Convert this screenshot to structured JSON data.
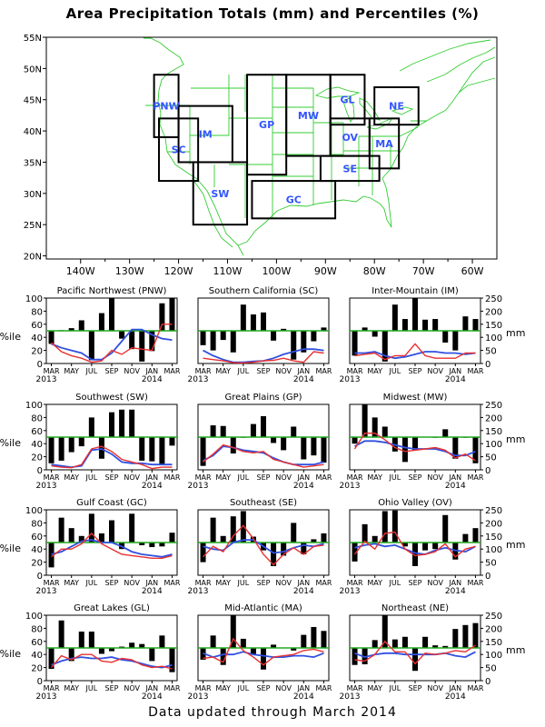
{
  "title": "Area Precipitation Totals (mm) and Percentiles (%)",
  "footer": "Data updated through March 2014",
  "colors": {
    "map_lines": "#33cc33",
    "region_box": "#000000",
    "region_label": "#3355ff",
    "bars": "#000000",
    "percentile_line": "#e83030",
    "normal_line": "#3050e0",
    "median_line": "#22aa22"
  },
  "map": {
    "lon_ticks": [
      "140W",
      "130W",
      "120W",
      "110W",
      "100W",
      "90W",
      "80W",
      "70W",
      "60W"
    ],
    "lat_ticks": [
      "55N",
      "50N",
      "45N",
      "40N",
      "35N",
      "30N",
      "25N",
      "20N"
    ],
    "lon_range": [
      -147,
      -55
    ],
    "lat_range": [
      19.5,
      55
    ],
    "regions": [
      {
        "label": "PNW",
        "lon": [
          -125,
          -120
        ],
        "lat": [
          39,
          49
        ]
      },
      {
        "label": "SC",
        "lon": [
          -124,
          -116
        ],
        "lat": [
          32,
          42
        ]
      },
      {
        "label": "IM",
        "lon": [
          -120,
          -109
        ],
        "lat": [
          35,
          44
        ]
      },
      {
        "label": "SW",
        "lon": [
          -117,
          -106
        ],
        "lat": [
          25,
          35
        ]
      },
      {
        "label": "GP",
        "lon": [
          -106,
          -98
        ],
        "lat": [
          33,
          49
        ]
      },
      {
        "label": "MW",
        "lon": [
          -98,
          -89
        ],
        "lat": [
          36,
          49
        ]
      },
      {
        "label": "GL",
        "lon": [
          -89,
          -82
        ],
        "lat": [
          41,
          49
        ]
      },
      {
        "label": "OV",
        "lon": [
          -89,
          -81
        ],
        "lat": [
          36,
          42
        ]
      },
      {
        "label": "NE",
        "lon": [
          -80,
          -71
        ],
        "lat": [
          41,
          47
        ]
      },
      {
        "label": "MA",
        "lon": [
          -81,
          -75
        ],
        "lat": [
          34,
          42
        ]
      },
      {
        "label": "SE",
        "lon": [
          -91,
          -79
        ],
        "lat": [
          32,
          36
        ]
      },
      {
        "label": "GC",
        "lon": [
          -105,
          -88
        ],
        "lat": [
          26,
          32
        ]
      }
    ]
  },
  "axes_labels": {
    "pct_label": "%ile",
    "mm_label": "mm",
    "pct_ticks": [
      "0",
      "20",
      "40",
      "60",
      "80",
      "100"
    ],
    "mm_ticks": [
      "0",
      "50",
      "100",
      "150",
      "200",
      "250"
    ],
    "month_ticks": [
      "MAR",
      "MAY",
      "JUL",
      "SEP",
      "NOV",
      "JAN",
      "MAR"
    ],
    "year_start": "2013",
    "year_mid": "2014"
  },
  "chart_data": [
    {
      "type": "bar",
      "title": "Pacific Northwest (PNW)",
      "months": [
        "2013-03",
        "2013-04",
        "2013-05",
        "2013-06",
        "2013-07",
        "2013-08",
        "2013-09",
        "2013-10",
        "2013-11",
        "2013-12",
        "2014-01",
        "2014-02",
        "2014-03"
      ],
      "percentile": [
        30,
        51,
        54,
        66,
        5,
        77,
        100,
        38,
        22,
        3,
        19,
        92,
        100
      ],
      "total_mm": [
        80,
        45,
        30,
        20,
        5,
        10,
        50,
        35,
        60,
        55,
        50,
        150,
        150
      ],
      "normal_mm": [
        75,
        60,
        50,
        40,
        15,
        15,
        40,
        85,
        130,
        130,
        110,
        95,
        90
      ]
    },
    {
      "type": "bar",
      "title": "Southern California (SC)",
      "months": [
        "2013-03",
        "2013-04",
        "2013-05",
        "2013-06",
        "2013-07",
        "2013-08",
        "2013-09",
        "2013-10",
        "2013-11",
        "2013-12",
        "2014-01",
        "2014-02",
        "2014-03"
      ],
      "percentile": [
        28,
        20,
        36,
        17,
        90,
        75,
        78,
        35,
        53,
        6,
        17,
        34,
        55
      ],
      "total_mm": [
        20,
        15,
        10,
        3,
        2,
        5,
        10,
        12,
        20,
        10,
        5,
        45,
        40
      ],
      "normal_mm": [
        50,
        30,
        15,
        5,
        5,
        8,
        10,
        20,
        35,
        45,
        55,
        55,
        50
      ]
    },
    {
      "type": "bar",
      "title": "Inter-Mountain (IM)",
      "months": [
        "2013-03",
        "2013-04",
        "2013-05",
        "2013-06",
        "2013-07",
        "2013-08",
        "2013-09",
        "2013-10",
        "2013-11",
        "2013-12",
        "2014-01",
        "2014-02",
        "2014-03"
      ],
      "percentile": [
        12,
        55,
        41,
        3,
        90,
        68,
        100,
        67,
        68,
        32,
        20,
        72,
        68
      ],
      "total_mm": [
        30,
        35,
        40,
        15,
        30,
        30,
        75,
        30,
        20,
        20,
        20,
        40,
        40
      ],
      "normal_mm": [
        40,
        40,
        45,
        30,
        20,
        25,
        35,
        45,
        45,
        40,
        40,
        35,
        40
      ]
    },
    {
      "type": "bar",
      "title": "Southwest (SW)",
      "months": [
        "2013-03",
        "2013-04",
        "2013-05",
        "2013-06",
        "2013-07",
        "2013-08",
        "2013-09",
        "2013-10",
        "2013-11",
        "2013-12",
        "2014-01",
        "2014-02",
        "2014-03"
      ],
      "percentile": [
        10,
        14,
        27,
        36,
        80,
        17,
        88,
        92,
        92,
        14,
        13,
        8,
        37
      ],
      "total_mm": [
        15,
        10,
        8,
        20,
        80,
        90,
        70,
        40,
        30,
        20,
        5,
        10,
        10
      ],
      "normal_mm": [
        20,
        15,
        10,
        15,
        75,
        80,
        60,
        30,
        25,
        25,
        20,
        20,
        20
      ]
    },
    {
      "type": "bar",
      "title": "Great Plains (GP)",
      "months": [
        "2013-03",
        "2013-04",
        "2013-05",
        "2013-06",
        "2013-07",
        "2013-08",
        "2013-09",
        "2013-10",
        "2013-11",
        "2013-12",
        "2014-01",
        "2014-02",
        "2014-03"
      ],
      "percentile": [
        6,
        68,
        67,
        25,
        49,
        70,
        82,
        41,
        30,
        66,
        16,
        22,
        11
      ],
      "total_mm": [
        30,
        60,
        95,
        85,
        70,
        65,
        70,
        40,
        30,
        20,
        10,
        15,
        20
      ],
      "normal_mm": [
        35,
        55,
        90,
        85,
        75,
        70,
        65,
        45,
        30,
        20,
        20,
        20,
        30
      ]
    },
    {
      "type": "bar",
      "title": "Midwest (MW)",
      "months": [
        "2013-03",
        "2013-04",
        "2013-05",
        "2013-06",
        "2013-07",
        "2013-08",
        "2013-09",
        "2013-10",
        "2013-11",
        "2013-12",
        "2014-01",
        "2014-02",
        "2014-03"
      ],
      "percentile": [
        40,
        100,
        80,
        66,
        28,
        12,
        30,
        50,
        49,
        62,
        17,
        49,
        10
      ],
      "total_mm": [
        80,
        140,
        140,
        115,
        85,
        70,
        75,
        80,
        85,
        75,
        45,
        60,
        35
      ],
      "normal_mm": [
        90,
        110,
        110,
        105,
        95,
        85,
        80,
        80,
        80,
        70,
        55,
        55,
        70
      ]
    },
    {
      "type": "bar",
      "title": "Gulf Coast (GC)",
      "months": [
        "2013-03",
        "2013-04",
        "2013-05",
        "2013-06",
        "2013-07",
        "2013-08",
        "2013-09",
        "2013-10",
        "2013-11",
        "2013-12",
        "2014-01",
        "2014-02",
        "2014-03"
      ],
      "percentile": [
        12,
        88,
        72,
        60,
        94,
        64,
        84,
        40,
        94,
        46,
        43,
        44,
        65
      ],
      "total_mm": [
        70,
        100,
        100,
        120,
        160,
        120,
        100,
        80,
        75,
        70,
        65,
        65,
        75
      ],
      "normal_mm": [
        80,
        90,
        110,
        130,
        135,
        125,
        125,
        110,
        90,
        80,
        75,
        70,
        80
      ]
    },
    {
      "type": "bar",
      "title": "Southeast (SE)",
      "months": [
        "2013-03",
        "2013-04",
        "2013-05",
        "2013-06",
        "2013-07",
        "2013-08",
        "2013-09",
        "2013-10",
        "2013-11",
        "2013-12",
        "2014-01",
        "2014-02",
        "2014-03"
      ],
      "percentile": [
        20,
        88,
        60,
        90,
        98,
        59,
        38,
        14,
        30,
        80,
        32,
        55,
        64
      ],
      "total_mm": [
        70,
        110,
        90,
        150,
        190,
        140,
        80,
        40,
        80,
        105,
        80,
        110,
        115
      ],
      "normal_mm": [
        110,
        100,
        95,
        125,
        135,
        135,
        110,
        85,
        90,
        105,
        115,
        110,
        120
      ]
    },
    {
      "type": "bar",
      "title": "Ohio Valley (OV)",
      "months": [
        "2013-03",
        "2013-04",
        "2013-05",
        "2013-06",
        "2013-07",
        "2013-08",
        "2013-09",
        "2013-10",
        "2013-11",
        "2013-12",
        "2014-01",
        "2014-02",
        "2014-03"
      ],
      "percentile": [
        21,
        78,
        60,
        98,
        99,
        44,
        14,
        38,
        40,
        92,
        24,
        63,
        72
      ],
      "total_mm": [
        80,
        130,
        100,
        160,
        165,
        100,
        75,
        80,
        90,
        120,
        70,
        100,
        110
      ],
      "normal_mm": [
        105,
        115,
        120,
        110,
        115,
        100,
        85,
        80,
        95,
        105,
        95,
        90,
        110
      ]
    },
    {
      "type": "bar",
      "title": "Great Lakes (GL)",
      "months": [
        "2013-03",
        "2013-04",
        "2013-05",
        "2013-06",
        "2013-07",
        "2013-08",
        "2013-09",
        "2013-10",
        "2013-11",
        "2013-12",
        "2014-01",
        "2014-02",
        "2014-03"
      ],
      "percentile": [
        18,
        92,
        30,
        75,
        75,
        41,
        45,
        52,
        58,
        56,
        30,
        69,
        13
      ],
      "total_mm": [
        50,
        95,
        80,
        100,
        100,
        75,
        70,
        85,
        80,
        60,
        50,
        55,
        45
      ],
      "normal_mm": [
        60,
        75,
        85,
        90,
        85,
        85,
        90,
        80,
        75,
        65,
        55,
        50,
        60
      ]
    },
    {
      "type": "bar",
      "title": "Mid-Atlantic (MA)",
      "months": [
        "2013-03",
        "2013-04",
        "2013-05",
        "2013-06",
        "2013-07",
        "2013-08",
        "2013-09",
        "2013-10",
        "2013-11",
        "2013-12",
        "2014-01",
        "2014-02",
        "2014-03"
      ],
      "percentile": [
        32,
        69,
        24,
        100,
        64,
        40,
        17,
        55,
        50,
        46,
        70,
        82,
        76
      ],
      "total_mm": [
        85,
        90,
        70,
        160,
        115,
        90,
        60,
        90,
        95,
        100,
        115,
        120,
        110
      ],
      "normal_mm": [
        105,
        90,
        100,
        100,
        110,
        100,
        95,
        90,
        90,
        95,
        95,
        90,
        105
      ]
    },
    {
      "type": "bar",
      "title": "Northeast (NE)",
      "months": [
        "2013-03",
        "2013-04",
        "2013-05",
        "2013-06",
        "2013-07",
        "2013-08",
        "2013-09",
        "2013-10",
        "2013-11",
        "2013-12",
        "2014-01",
        "2014-02",
        "2014-03"
      ],
      "percentile": [
        24,
        25,
        62,
        100,
        63,
        67,
        15,
        67,
        54,
        53,
        79,
        85,
        88
      ],
      "total_mm": [
        80,
        75,
        100,
        150,
        110,
        110,
        65,
        105,
        100,
        105,
        115,
        110,
        135
      ],
      "normal_mm": [
        105,
        90,
        100,
        105,
        105,
        100,
        100,
        100,
        100,
        105,
        95,
        90,
        110
      ]
    }
  ]
}
